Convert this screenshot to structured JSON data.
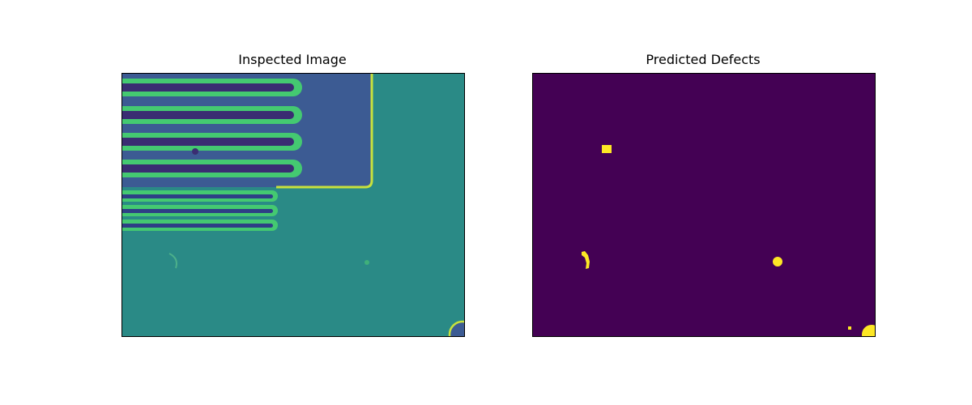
{
  "figure": {
    "left_title": "Inspected Image",
    "right_title": "Predicted Defects"
  },
  "colors": {
    "background": "#2a8a86",
    "pad": "#3c5b93",
    "finger": "#44c971",
    "edge_highlight": "#c8e23c",
    "dark_gap": "#3a2d72",
    "defect_bg": "#440154",
    "defect": "#fde725"
  }
}
